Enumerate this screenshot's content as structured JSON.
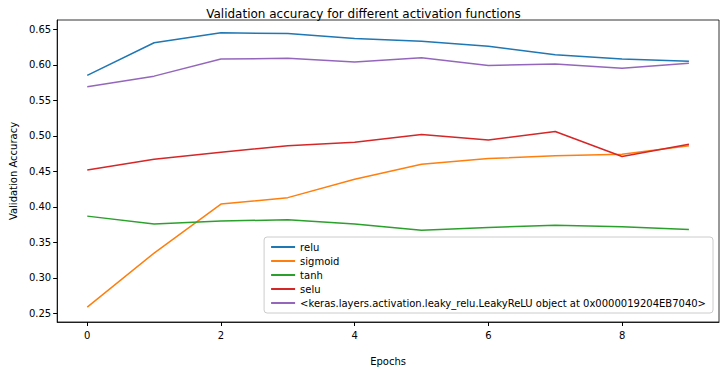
{
  "chart_data": {
    "type": "line",
    "title": "Validation accuracy for different activation functions",
    "x_label": "Epochs",
    "y_label": "Validation Accuracy",
    "x": [
      0,
      1,
      2,
      3,
      4,
      5,
      6,
      7,
      8,
      9
    ],
    "series": [
      {
        "name": "relu",
        "color": "#1f77b4",
        "values": [
          0.585,
          0.631,
          0.645,
          0.644,
          0.637,
          0.633,
          0.626,
          0.614,
          0.608,
          0.605
        ]
      },
      {
        "name": "sigmoid",
        "color": "#ff7f0e",
        "values": [
          0.259,
          0.335,
          0.404,
          0.413,
          0.439,
          0.46,
          0.468,
          0.472,
          0.474,
          0.486
        ]
      },
      {
        "name": "tanh",
        "color": "#2ca02c",
        "values": [
          0.387,
          0.376,
          0.38,
          0.382,
          0.376,
          0.367,
          0.371,
          0.374,
          0.372,
          0.368
        ]
      },
      {
        "name": "selu",
        "color": "#d62728",
        "values": [
          0.452,
          0.467,
          0.477,
          0.486,
          0.491,
          0.502,
          0.494,
          0.506,
          0.471,
          0.488
        ]
      },
      {
        "name": "<keras.layers.activation.leaky_relu.LeakyReLU object at 0x0000019204EB7040>",
        "color": "#9467bd",
        "values": [
          0.569,
          0.584,
          0.608,
          0.609,
          0.604,
          0.61,
          0.599,
          0.601,
          0.595,
          0.602
        ]
      }
    ],
    "xlim": [
      -0.45,
      9.45
    ],
    "xticks": [
      0,
      2,
      4,
      6,
      8
    ],
    "ylim": [
      0.238,
      0.663
    ],
    "yticks": [
      {
        "value": 0.25,
        "label": "0.25"
      },
      {
        "value": 0.3,
        "label": "0.30"
      },
      {
        "value": 0.35,
        "label": "0.35"
      },
      {
        "value": 0.4,
        "label": "0.40"
      },
      {
        "value": 0.45,
        "label": "0.45"
      },
      {
        "value": 0.5,
        "label": "0.50"
      },
      {
        "value": 0.55,
        "label": "0.55"
      },
      {
        "value": 0.6,
        "label": "0.60"
      },
      {
        "value": 0.65,
        "label": "0.65"
      }
    ],
    "grid": false,
    "legend": "lower right"
  }
}
